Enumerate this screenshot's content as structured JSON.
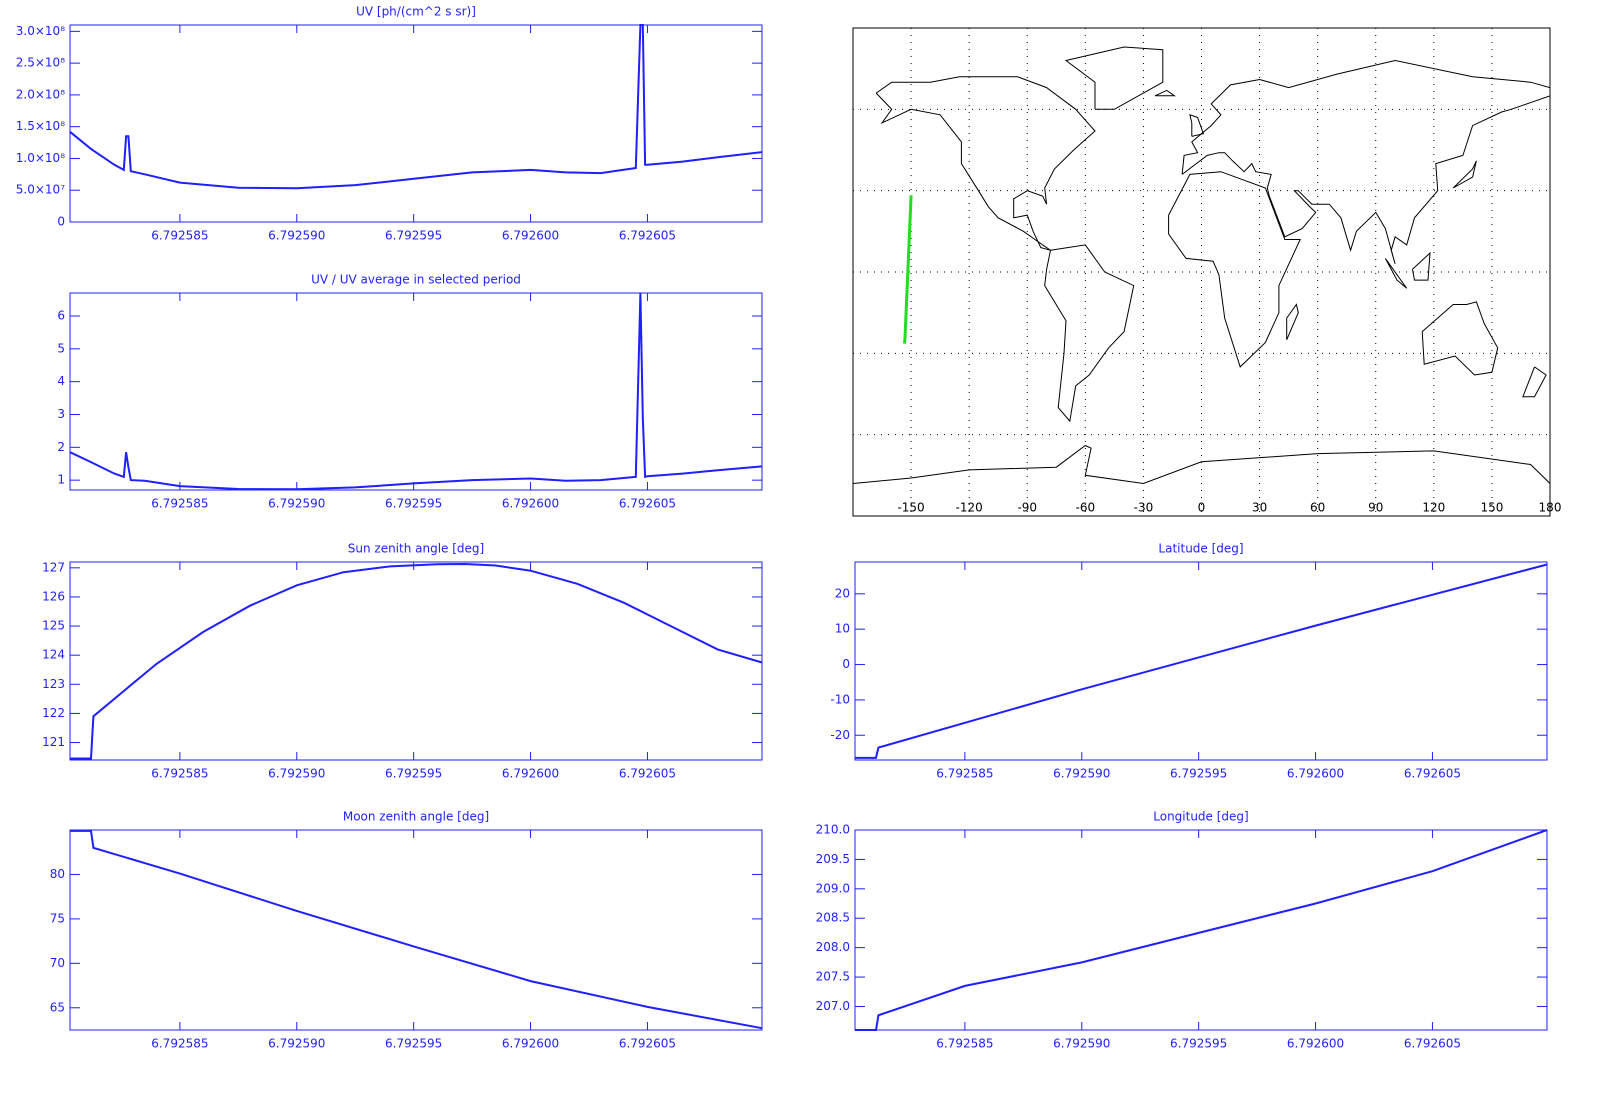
{
  "chart_data": [
    {
      "type": "line",
      "title": "UV [ph/(cm^2 s sr)]",
      "color": "#1f1fff",
      "xlim": [
        6.7925803,
        6.7926099
      ],
      "ylim": [
        0,
        310000000
      ],
      "xticks": [
        6.792585,
        {
          "value": 6.79259,
          "label": "6.792590"
        },
        6.792595,
        {
          "value": 6.7926,
          "label": "6.792600"
        },
        6.792605
      ],
      "yticks": [
        0,
        {
          "value": 50000000,
          "label": "5.0×10⁷"
        },
        {
          "value": 100000000,
          "label": "1.0×10⁸"
        },
        {
          "value": 150000000,
          "label": "1.5×10⁸"
        },
        {
          "value": 200000000,
          "label": "2.0×10⁸"
        },
        {
          "value": 250000000,
          "label": "2.5×10⁸"
        },
        {
          "value": 300000000,
          "label": "3.0×10⁸"
        }
      ],
      "x": [
        6.7925803,
        6.7925812,
        6.7925822,
        6.7925826,
        6.7925827,
        6.7925828,
        6.7925829,
        6.7925835,
        6.792585,
        6.7925875,
        6.79259,
        6.7925925,
        6.792595,
        6.7925975,
        6.7926,
        6.7926015,
        6.792603,
        6.7926045,
        6.7926047,
        6.7926048,
        6.7926049,
        6.792605,
        6.7926065,
        6.792608,
        6.7926099
      ],
      "values": [
        142000000,
        115000000,
        90000000,
        82000000,
        135000000,
        135000000,
        80000000,
        75000000,
        62000000,
        54000000,
        53000000,
        58000000,
        68000000,
        78000000,
        82000000,
        78000000,
        77000000,
        85000000,
        310000000,
        310000000,
        90000000,
        90000000,
        95000000,
        102000000,
        110000000
      ]
    },
    {
      "type": "line",
      "title": "UV / UV average in selected period",
      "color": "#1f1fff",
      "xlim": [
        6.7925803,
        6.7926099
      ],
      "ylim": [
        0.7,
        6.7
      ],
      "xticks": [
        6.792585,
        {
          "value": 6.79259,
          "label": "6.792590"
        },
        6.792595,
        {
          "value": 6.7926,
          "label": "6.792600"
        },
        6.792605
      ],
      "yticks": [
        1,
        2,
        3,
        4,
        5,
        6
      ],
      "x": [
        6.7925803,
        6.7925812,
        6.7925822,
        6.7925826,
        6.7925827,
        6.7925828,
        6.7925829,
        6.7925835,
        6.792585,
        6.7925875,
        6.79259,
        6.7925925,
        6.792595,
        6.7925975,
        6.7926,
        6.7926015,
        6.792603,
        6.7926045,
        6.7926047,
        6.7926048,
        6.7926049,
        6.792605,
        6.7926065,
        6.792608,
        6.7926099
      ],
      "values": [
        1.85,
        1.55,
        1.2,
        1.1,
        1.85,
        1.4,
        1.0,
        0.98,
        0.82,
        0.73,
        0.72,
        0.78,
        0.9,
        1.0,
        1.05,
        0.98,
        1.0,
        1.1,
        6.7,
        2.9,
        1.1,
        1.12,
        1.2,
        1.3,
        1.42
      ]
    },
    {
      "type": "line",
      "title": "Sun zenith angle [deg]",
      "color": "#1f1fff",
      "xlim": [
        6.7925803,
        6.7926099
      ],
      "ylim": [
        120.4,
        127.2
      ],
      "xticks": [
        6.792585,
        {
          "value": 6.79259,
          "label": "6.792590"
        },
        6.792595,
        {
          "value": 6.7926,
          "label": "6.792600"
        },
        6.792605
      ],
      "yticks": [
        121,
        122,
        123,
        124,
        125,
        126,
        127
      ],
      "x": [
        6.7925803,
        6.7925812,
        6.7925813,
        6.7925825,
        6.792584,
        6.792586,
        6.792588,
        6.79259,
        6.792592,
        6.792594,
        6.792596,
        6.7925972,
        6.7925985,
        6.7926,
        6.792602,
        6.792604,
        6.792606,
        6.792608,
        6.7926099
      ],
      "values": [
        120.45,
        120.45,
        121.9,
        122.7,
        123.7,
        124.8,
        125.7,
        126.4,
        126.85,
        127.05,
        127.12,
        127.13,
        127.08,
        126.9,
        126.45,
        125.8,
        125.0,
        124.2,
        123.75
      ]
    },
    {
      "type": "line",
      "title": "Moon zenith angle [deg]",
      "color": "#1f1fff",
      "xlim": [
        6.7925803,
        6.7926099
      ],
      "ylim": [
        62.5,
        85
      ],
      "xticks": [
        6.792585,
        {
          "value": 6.79259,
          "label": "6.792590"
        },
        6.792595,
        {
          "value": 6.7926,
          "label": "6.792600"
        },
        6.792605
      ],
      "yticks": [
        65,
        70,
        75,
        80
      ],
      "x": [
        6.7925803,
        6.7925812,
        6.7925813,
        6.792585,
        6.79259,
        6.792595,
        6.7926,
        6.792605,
        6.7926099
      ],
      "values": [
        84.9,
        84.9,
        83.0,
        80.1,
        75.9,
        71.9,
        68.0,
        65.1,
        62.7
      ]
    },
    {
      "type": "map",
      "color": "#22dd22",
      "xlim": [
        -180,
        180
      ],
      "ylim": [
        -90,
        90
      ],
      "xticks": [
        -150,
        -120,
        -90,
        -60,
        -30,
        0,
        30,
        60,
        90,
        120,
        150,
        180
      ],
      "ygrid": [
        -60,
        -30,
        0,
        30,
        60
      ],
      "x": [
        -153.4,
        -153.1,
        -150.0
      ],
      "values": [
        -26.4,
        -23.5,
        28.3
      ]
    },
    {
      "type": "line",
      "title": "Latitude [deg]",
      "color": "#1f1fff",
      "xlim": [
        6.7925803,
        6.7926099
      ],
      "ylim": [
        -27,
        29
      ],
      "xticks": [
        6.792585,
        {
          "value": 6.79259,
          "label": "6.792590"
        },
        6.792595,
        {
          "value": 6.7926,
          "label": "6.792600"
        },
        6.792605
      ],
      "yticks": [
        -20,
        -10,
        0,
        10,
        20
      ],
      "x": [
        6.7925803,
        6.7925812,
        6.7925813,
        6.79259,
        6.7926,
        6.7926099
      ],
      "values": [
        -26.4,
        -26.4,
        -23.5,
        -7.0,
        11.0,
        28.3
      ]
    },
    {
      "type": "line",
      "title": "Longitude [deg]",
      "color": "#1f1fff",
      "xlim": [
        6.7925803,
        6.7926099
      ],
      "ylim": [
        206.6,
        210.0
      ],
      "xticks": [
        6.792585,
        {
          "value": 6.79259,
          "label": "6.792590"
        },
        6.792595,
        {
          "value": 6.7926,
          "label": "6.792600"
        },
        6.792605
      ],
      "yticks": [
        {
          "value": 207,
          "label": "207.0"
        },
        207.5,
        {
          "value": 208,
          "label": "208.0"
        },
        208.5,
        {
          "value": 209,
          "label": "209.0"
        },
        209.5,
        {
          "value": 210,
          "label": "210.0"
        }
      ],
      "x": [
        6.7925803,
        6.7925812,
        6.7925813,
        6.792585,
        6.79259,
        6.792595,
        6.7926,
        6.792605,
        6.7926099
      ],
      "values": [
        206.6,
        206.6,
        206.85,
        207.35,
        207.75,
        208.25,
        208.75,
        209.3,
        210.0
      ]
    }
  ]
}
